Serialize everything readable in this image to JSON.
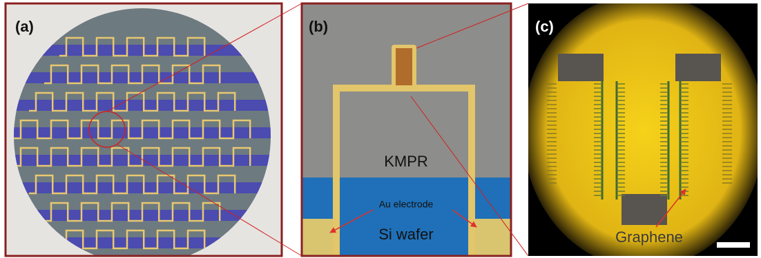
{
  "panels": [
    {
      "label": "(a)"
    },
    {
      "label": "(b)",
      "annotations": [
        "KMPR",
        "Au electrode",
        "Si wafer"
      ]
    },
    {
      "label": "(c)",
      "annotations": [
        "Graphene"
      ]
    }
  ]
}
